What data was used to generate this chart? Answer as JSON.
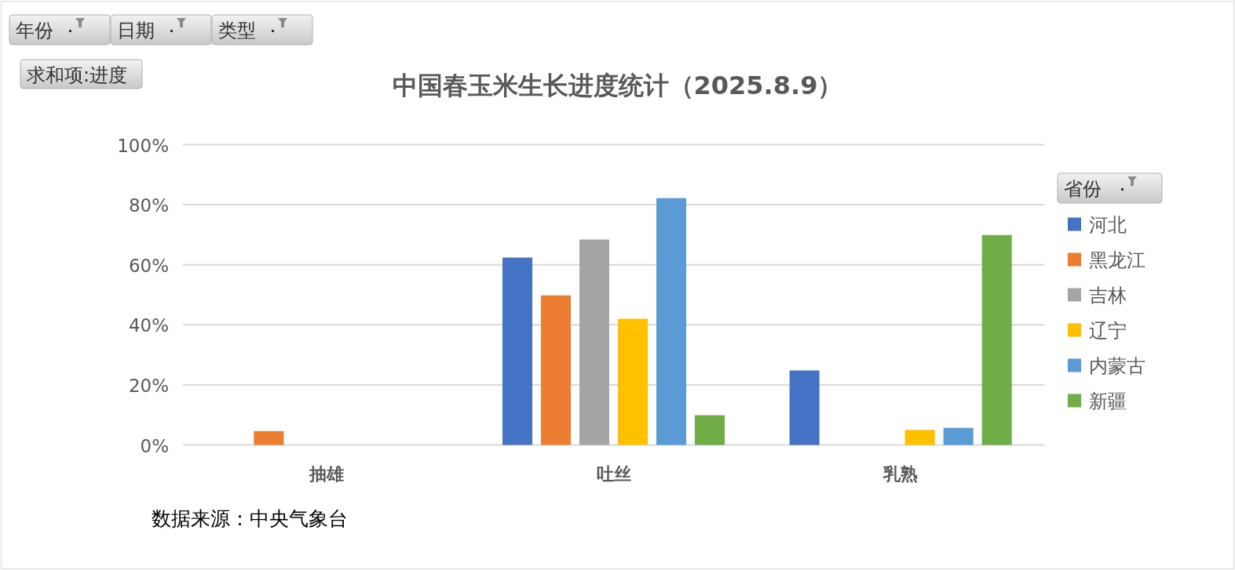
{
  "chart_data": {
    "type": "bar",
    "title": "中国春玉米生长进度统计（2025.8.9）",
    "categories": [
      "抽雄",
      "吐丝",
      "乳熟"
    ],
    "series": [
      {
        "name": "河北",
        "color": "#4472c4",
        "values": [
          null,
          62.4,
          24.8
        ]
      },
      {
        "name": "黑龙江",
        "color": "#ed7d31",
        "values": [
          4.6,
          49.8,
          null
        ]
      },
      {
        "name": "吉林",
        "color": "#a5a5a5",
        "values": [
          null,
          68.4,
          null
        ]
      },
      {
        "name": "辽宁",
        "color": "#ffc000",
        "values": [
          null,
          42,
          5
        ]
      },
      {
        "name": "内蒙古",
        "color": "#5b9bd5",
        "values": [
          null,
          82.2,
          5.7
        ]
      },
      {
        "name": "新疆",
        "color": "#70ad47",
        "values": [
          null,
          9.9,
          69.9
        ]
      }
    ],
    "ylim": [
      0,
      100
    ],
    "yticks": [
      {
        "value": 0,
        "label": "0%"
      },
      {
        "value": 20,
        "label": "20%"
      },
      {
        "value": 40,
        "label": "40%"
      },
      {
        "value": 60,
        "label": "60%"
      },
      {
        "value": 80,
        "label": "80%"
      },
      {
        "value": 100,
        "label": "100%"
      }
    ],
    "grid": "y",
    "legend": "right",
    "legend_title": "省份",
    "annotations": [
      "年份",
      "日期",
      "类型",
      "求和项:进度",
      "数据来源：中央气象台"
    ]
  }
}
